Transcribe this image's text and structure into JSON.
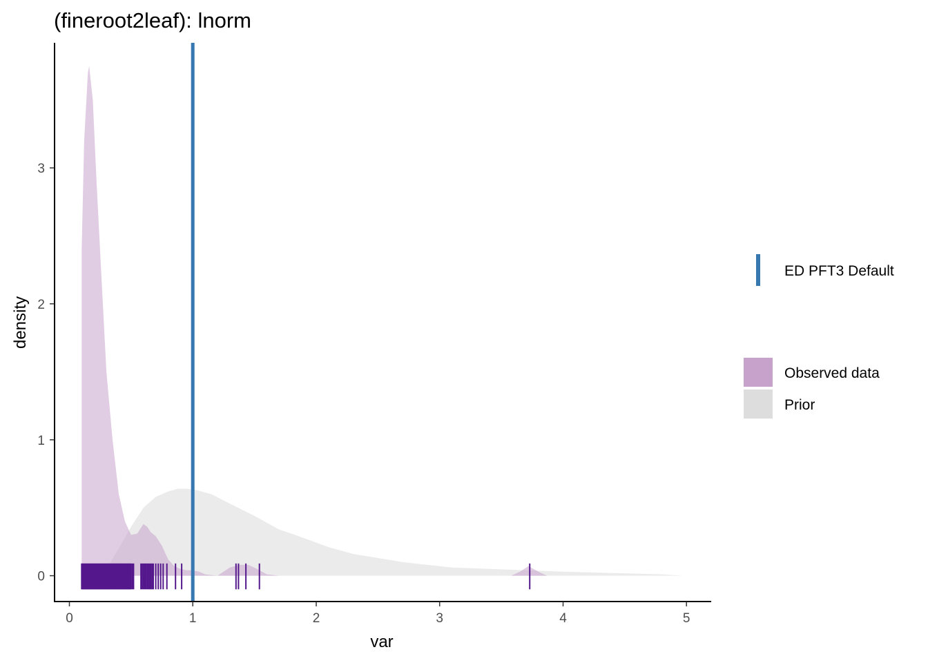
{
  "chart_data": {
    "type": "area",
    "title": "(fineroot2leaf): lnorm",
    "xlabel": "var",
    "ylabel": "density",
    "xlim": [
      -0.12,
      5.2
    ],
    "ylim": [
      -0.19,
      3.92
    ],
    "x_ticks": [
      0,
      1,
      2,
      3,
      4,
      5
    ],
    "y_ticks": [
      0,
      1,
      2,
      3
    ],
    "grid": false,
    "legend_position": "right",
    "colors": {
      "observed_fill": "#C7A3CC",
      "prior_fill": "#DDDDDD",
      "rug": "#54188C",
      "default_line": "#3778B0"
    },
    "series": [
      {
        "name": "Prior",
        "kind": "density",
        "x": [
          0.25,
          0.32,
          0.4,
          0.5,
          0.6,
          0.7,
          0.8,
          0.88,
          0.95,
          1.03,
          1.15,
          1.3,
          1.5,
          1.7,
          1.8,
          1.95,
          2.1,
          2.3,
          2.5,
          2.7,
          2.9,
          3.1,
          3.4,
          3.7,
          4.0,
          4.4,
          4.8,
          4.97
        ],
        "y": [
          0.0,
          0.08,
          0.2,
          0.36,
          0.5,
          0.58,
          0.62,
          0.64,
          0.64,
          0.63,
          0.6,
          0.53,
          0.44,
          0.34,
          0.31,
          0.26,
          0.21,
          0.16,
          0.13,
          0.1,
          0.08,
          0.06,
          0.05,
          0.04,
          0.03,
          0.02,
          0.01,
          0.0
        ]
      },
      {
        "name": "Observed data",
        "kind": "density",
        "x": [
          0.1,
          0.1,
          0.12,
          0.15,
          0.16,
          0.19,
          0.22,
          0.26,
          0.3,
          0.35,
          0.4,
          0.45,
          0.5,
          0.55,
          0.6,
          0.63,
          0.66,
          0.7,
          0.75,
          0.8,
          0.85,
          0.9,
          0.95,
          1.0,
          1.05,
          1.1,
          1.2,
          1.3,
          1.38,
          1.45,
          1.52,
          1.6,
          1.7,
          1.9,
          2.2,
          2.5,
          2.8,
          3.1,
          3.4,
          3.58,
          3.65,
          3.72,
          3.8,
          3.87,
          3.95,
          4.2,
          4.6,
          4.98
        ],
        "y": [
          0.0,
          2.4,
          3.2,
          3.7,
          3.75,
          3.5,
          2.9,
          2.2,
          1.5,
          1.0,
          0.6,
          0.4,
          0.3,
          0.31,
          0.38,
          0.36,
          0.32,
          0.29,
          0.22,
          0.12,
          0.07,
          0.05,
          0.04,
          0.04,
          0.03,
          0.01,
          0.0,
          0.06,
          0.08,
          0.08,
          0.05,
          0.01,
          0.0,
          0.0,
          0.0,
          0.0,
          0.0,
          0.0,
          0.0,
          0.0,
          0.03,
          0.07,
          0.03,
          0.0,
          0.0,
          0.0,
          0.0,
          0.0
        ]
      }
    ],
    "rug": [
      0.1,
      0.105,
      0.11,
      0.115,
      0.12,
      0.125,
      0.13,
      0.135,
      0.14,
      0.145,
      0.15,
      0.155,
      0.16,
      0.165,
      0.17,
      0.175,
      0.18,
      0.185,
      0.19,
      0.195,
      0.2,
      0.205,
      0.21,
      0.215,
      0.22,
      0.225,
      0.23,
      0.235,
      0.24,
      0.245,
      0.25,
      0.255,
      0.26,
      0.265,
      0.27,
      0.275,
      0.28,
      0.285,
      0.29,
      0.295,
      0.3,
      0.305,
      0.31,
      0.315,
      0.32,
      0.325,
      0.33,
      0.335,
      0.34,
      0.345,
      0.35,
      0.355,
      0.36,
      0.365,
      0.37,
      0.375,
      0.38,
      0.385,
      0.39,
      0.395,
      0.4,
      0.405,
      0.41,
      0.415,
      0.42,
      0.425,
      0.43,
      0.435,
      0.44,
      0.445,
      0.45,
      0.455,
      0.46,
      0.465,
      0.47,
      0.475,
      0.48,
      0.485,
      0.49,
      0.495,
      0.5,
      0.51,
      0.52,
      0.58,
      0.59,
      0.6,
      0.61,
      0.62,
      0.63,
      0.64,
      0.65,
      0.66,
      0.67,
      0.68,
      0.7,
      0.72,
      0.74,
      0.76,
      0.79,
      0.86,
      0.91,
      1.35,
      1.37,
      1.43,
      1.54,
      3.73
    ],
    "reference_line": {
      "name": "ED PFT3 Default",
      "x": 1.0
    },
    "legend": {
      "line_entries": [
        "ED PFT3 Default"
      ],
      "fill_entries": [
        "Observed data",
        "Prior"
      ]
    }
  }
}
